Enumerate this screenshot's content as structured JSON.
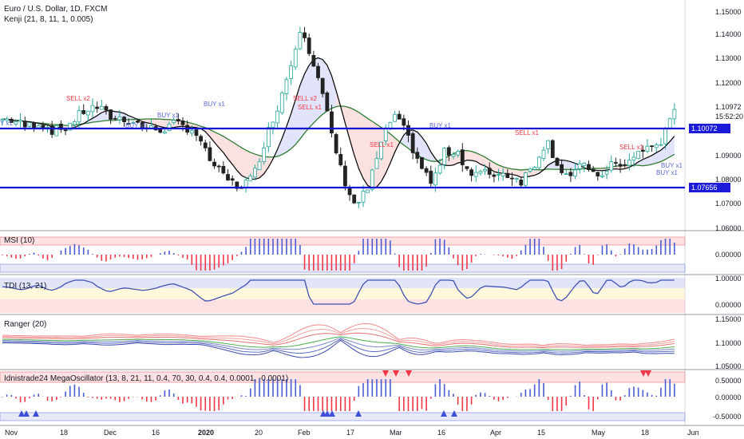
{
  "header": {
    "symbol_title": "Euro / U.S. Dollar, 1D, FXCM",
    "indicator": "Kenji (21, 8, 11, 1, 0.005)"
  },
  "price_axis": {
    "labels": [
      "1.15000",
      "1.14000",
      "1.13000",
      "1.12000",
      "1.10972",
      "15:52:20",
      "1.09000",
      "1.08000",
      "1.07000",
      "1.06000"
    ],
    "level_high": "1.10072",
    "level_low": "1.07656"
  },
  "signals": {
    "sell_x2_a": "SELL x2",
    "sell_x2_b": "SELL x2",
    "sell_x1_a": "SELL x1",
    "sell_x1_b": "SELL x1",
    "sell_x1_c": "SELL x1",
    "sell_x1_d": "SELL x1",
    "buy_x1_a": "BUY x1",
    "buy_x1_b": "BUY x1",
    "buy_x1_c": "BUY x1",
    "buy_x1_d": "BUY x1",
    "buy_x1_e": "BUY x1",
    "buy_x1_f": "BUY x1",
    "buy_x1_g": "BUY x1",
    "left_edge": "Y x1"
  },
  "panes": {
    "msi": {
      "title": "MSI (10)",
      "labels": [
        "0.00000"
      ]
    },
    "tdi": {
      "title": "TDI (13, 21)",
      "labels": [
        "1.00000",
        "0.00000"
      ]
    },
    "ranger": {
      "title": "Ranger (20)",
      "labels": [
        "1.15000",
        "1.10000",
        "1.05000"
      ]
    },
    "mega": {
      "title": "Idnistrade24 MegaOscillator (13, 8, 21, 11, 0.4, 70, 30, 0.4, 0.4, 0.0001, -0.0001)",
      "labels": [
        "0.50000",
        "0.00000",
        "-0.50000"
      ]
    }
  },
  "time_axis": [
    "Nov",
    "18",
    "Dec",
    "16",
    "2020",
    "20",
    "Feb",
    "17",
    "Mar",
    "16",
    "Apr",
    "15",
    "May",
    "18",
    "Jun"
  ],
  "colors": {
    "up": "#26a69a",
    "down": "#222222",
    "level": "#1414d4",
    "sell": "#f23645",
    "buy": "#5b6bd6",
    "fast_ma": "#000000",
    "slow_ma": "#2e7d32"
  }
}
